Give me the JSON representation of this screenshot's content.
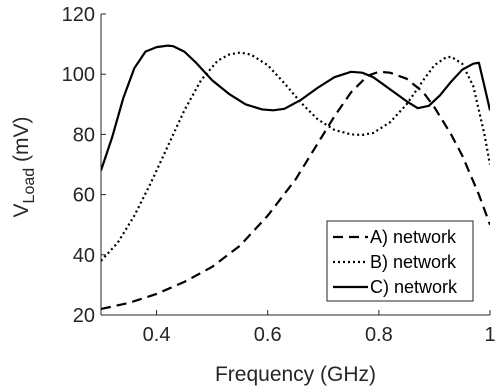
{
  "chart_data": {
    "type": "line",
    "xlabel": "Frequency (GHz)",
    "ylabel_main": "V",
    "ylabel_sub": "Load",
    "ylabel_unit": " (mV)",
    "xlim": [
      0.3,
      1.0
    ],
    "ylim": [
      20,
      120
    ],
    "xticks": [
      0.4,
      0.6,
      0.8,
      1.0
    ],
    "xtick_labels": [
      "0.4",
      "0.6",
      "0.8",
      "1"
    ],
    "yticks": [
      20,
      40,
      60,
      80,
      100,
      120
    ],
    "ytick_labels": [
      "20",
      "40",
      "60",
      "80",
      "100",
      "120"
    ],
    "grid": false,
    "legend_position": "bottom-right",
    "series": [
      {
        "name": "A) network",
        "style": "dashed",
        "color": "#000000",
        "x": [
          0.3,
          0.35,
          0.4,
          0.45,
          0.5,
          0.55,
          0.6,
          0.65,
          0.7,
          0.72,
          0.75,
          0.78,
          0.8,
          0.82,
          0.85,
          0.88,
          0.9,
          0.93,
          0.95,
          0.98,
          1.0
        ],
        "y": [
          22,
          24,
          27,
          31,
          36,
          43,
          53,
          65,
          80,
          86,
          94,
          99.5,
          100.8,
          100.5,
          98.5,
          94,
          89,
          80,
          73,
          60,
          50
        ]
      },
      {
        "name": "B) network",
        "style": "dotted",
        "color": "#000000",
        "x": [
          0.3,
          0.33,
          0.36,
          0.39,
          0.42,
          0.45,
          0.48,
          0.51,
          0.53,
          0.55,
          0.57,
          0.6,
          0.63,
          0.66,
          0.69,
          0.72,
          0.75,
          0.77,
          0.79,
          0.82,
          0.85,
          0.88,
          0.9,
          0.92,
          0.93,
          0.95,
          0.97,
          0.99,
          1.0
        ],
        "y": [
          38,
          44,
          53,
          64,
          76,
          88,
          98,
          104.5,
          106.5,
          107.2,
          106.5,
          103,
          97,
          90.5,
          85,
          81.5,
          80,
          79.8,
          80.5,
          84,
          90,
          98,
          103,
          105.5,
          105.8,
          103.5,
          96,
          80,
          70
        ]
      },
      {
        "name": "C) network",
        "style": "solid",
        "color": "#000000",
        "x": [
          0.3,
          0.32,
          0.34,
          0.36,
          0.38,
          0.4,
          0.42,
          0.43,
          0.45,
          0.47,
          0.5,
          0.53,
          0.56,
          0.59,
          0.61,
          0.63,
          0.66,
          0.69,
          0.72,
          0.75,
          0.77,
          0.79,
          0.82,
          0.85,
          0.87,
          0.89,
          0.91,
          0.93,
          0.95,
          0.97,
          0.98,
          0.99,
          1.0
        ],
        "y": [
          68,
          79,
          92,
          102,
          107.5,
          109,
          109.5,
          109.3,
          107.5,
          104,
          98,
          93.5,
          90,
          88.3,
          88,
          88.5,
          91.5,
          95.5,
          99,
          100.8,
          100.5,
          99,
          95,
          91,
          88.7,
          89.5,
          93,
          97.5,
          101.5,
          103.5,
          103.8,
          96,
          88
        ]
      }
    ]
  }
}
